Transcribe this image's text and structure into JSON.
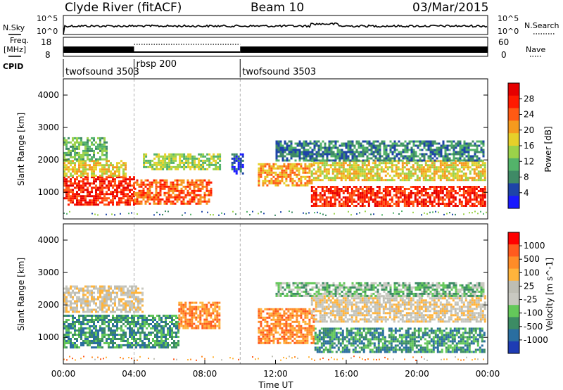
{
  "header": {
    "station": "Clyde River (fitACF)",
    "beam": "Beam 10",
    "date": "03/Mar/2015"
  },
  "top_panels": {
    "nsky_label": "N.Sky",
    "nsky_ticks": [
      "10^5",
      "10^0"
    ],
    "nsearch_label": "N.Search",
    "freq_label_1": "Freq.",
    "freq_label_2": "[MHz]",
    "freq_ticks": [
      "18",
      "8"
    ],
    "nave_label": "Nave",
    "nave_ticks": [
      "60",
      "0"
    ],
    "cpid_label": "CPID",
    "cpid_segments": [
      {
        "name": "twofsound 3503",
        "start_hour": 0,
        "end_hour": 4
      },
      {
        "name": "rbsp 200",
        "start_hour": 4,
        "end_hour": 10
      },
      {
        "name": "twofsound 3503",
        "start_hour": 10,
        "end_hour": 24
      }
    ]
  },
  "colors": {
    "power_scale": [
      "#1a1aff",
      "#1e44a8",
      "#3f8a66",
      "#53b36a",
      "#9bd24a",
      "#e6d02a",
      "#f59a1e",
      "#ff5a14",
      "#ff1a00",
      "#e60000"
    ],
    "velocity_scale": [
      "#ff0000",
      "#ff5a1e",
      "#ff8c28",
      "#ffb43c",
      "#bebeb4",
      "#c8c8c0",
      "#64c85a",
      "#3c8c64",
      "#2a6ea0",
      "#1e3cb4"
    ]
  },
  "chart_data": [
    {
      "type": "heatmap",
      "name": "power",
      "ylabel": "Slant Range [km]",
      "ylim": [
        180,
        4500
      ],
      "yticks": [
        "1000",
        "2000",
        "3000",
        "4000"
      ],
      "xlim": [
        0,
        24
      ],
      "colorbar_label": "Power [dB]",
      "colorbar_ticks": [
        "4",
        "8",
        "12",
        "16",
        "20",
        "24",
        "28"
      ],
      "bands": [
        {
          "x": [
            0.0,
            4.0
          ],
          "y": [
            600,
            1500
          ],
          "level": 8
        },
        {
          "x": [
            4.0,
            8.3
          ],
          "y": [
            650,
            1400
          ],
          "level": 7
        },
        {
          "x": [
            0.0,
            3.5
          ],
          "y": [
            1500,
            2000
          ],
          "level": 5
        },
        {
          "x": [
            0.0,
            2.5
          ],
          "y": [
            2000,
            2700
          ],
          "level": 3
        },
        {
          "x": [
            4.5,
            8.9
          ],
          "y": [
            1700,
            2200
          ],
          "level": 4
        },
        {
          "x": [
            11.0,
            14.0
          ],
          "y": [
            1200,
            1900
          ],
          "level": 6
        },
        {
          "x": [
            14.0,
            23.8
          ],
          "y": [
            550,
            1200
          ],
          "level": 8
        },
        {
          "x": [
            14.0,
            23.8
          ],
          "y": [
            1400,
            2000
          ],
          "level": 5
        },
        {
          "x": [
            12.0,
            23.8
          ],
          "y": [
            2000,
            2600
          ],
          "level": 2
        },
        {
          "x": [
            9.5,
            10.2
          ],
          "y": [
            1600,
            2200
          ],
          "level": 1
        }
      ]
    },
    {
      "type": "heatmap",
      "name": "velocity",
      "ylabel": "Slant Range [km]",
      "ylim": [
        180,
        4500
      ],
      "yticks": [
        "1000",
        "2000",
        "3000",
        "4000"
      ],
      "xlim": [
        0,
        24
      ],
      "xticks": [
        "00:00",
        "04:00",
        "08:00",
        "12:00",
        "16:00",
        "20:00",
        "00:00"
      ],
      "xlabel": "Time UT",
      "colorbar_label": "Velocity [m s^-1]",
      "colorbar_ticks": [
        "1000",
        "500",
        "100",
        "25",
        "-25",
        "-100",
        "-500",
        "-1000"
      ],
      "bands": [
        {
          "x": [
            0.0,
            6.5
          ],
          "y": [
            700,
            1700
          ],
          "level": 7
        },
        {
          "x": [
            0.0,
            4.5
          ],
          "y": [
            1800,
            2600
          ],
          "level": 4
        },
        {
          "x": [
            6.5,
            8.8
          ],
          "y": [
            1300,
            2100
          ],
          "level": 2
        },
        {
          "x": [
            11.0,
            14.2
          ],
          "y": [
            800,
            1900
          ],
          "level": 2
        },
        {
          "x": [
            14.2,
            23.8
          ],
          "y": [
            550,
            1300
          ],
          "level": 7
        },
        {
          "x": [
            14.0,
            23.8
          ],
          "y": [
            1500,
            2300
          ],
          "level": 4
        },
        {
          "x": [
            12.0,
            23.8
          ],
          "y": [
            2300,
            2700
          ],
          "level": 6
        }
      ]
    }
  ]
}
